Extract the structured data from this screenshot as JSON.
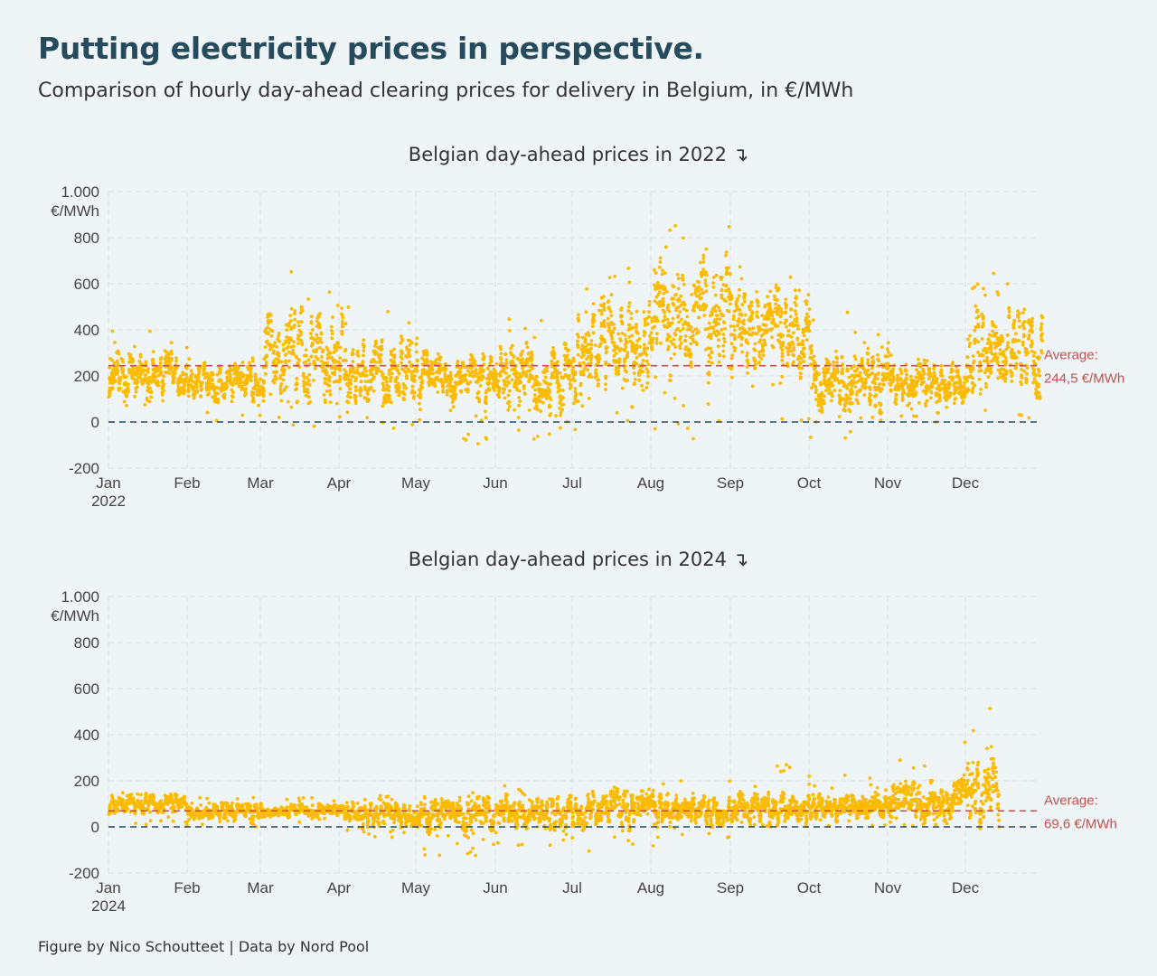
{
  "header": {
    "title": "Putting electricity prices in perspective.",
    "subtitle": "Comparison of hourly day-ahead clearing prices for delivery in Belgium, in €/MWh"
  },
  "footer": "Figure by Nico Schoutteet | Data by Nord Pool",
  "colors": {
    "points": "#fbbb00",
    "average_line": "#c0504d",
    "zero_line": "#264b5d",
    "grid": "#dcdfe2",
    "title": "#264b5d"
  },
  "chart_data": [
    {
      "type": "scatter",
      "title": "Belgian day-ahead prices in 2022 ↴",
      "year_label": "2022",
      "y_unit_label": "€/MWh",
      "ylim": [
        -200,
        1000
      ],
      "y_ticks": [
        -200,
        0,
        200,
        400,
        600,
        800,
        1000
      ],
      "y_tick_labels": [
        "-200",
        "0",
        "200",
        "400",
        "600",
        "800",
        "1.000"
      ],
      "months": [
        "Jan",
        "Feb",
        "Mar",
        "Apr",
        "May",
        "Jun",
        "Jul",
        "Aug",
        "Sep",
        "Oct",
        "Nov",
        "Dec"
      ],
      "reference_lines": [
        {
          "value": 244.5,
          "label_1": "Average:",
          "label_2": "244,5 €/MWh",
          "style": "dashed-red"
        },
        {
          "value": 0,
          "style": "dashed-dark"
        }
      ],
      "daily_ranges": {
        "description": "approximate daily low/mid/high hourly prices by month (€/MWh)",
        "monthly": [
          {
            "month": "Jan",
            "low": 60,
            "mid": 210,
            "high": 400
          },
          {
            "month": "Feb",
            "low": 0,
            "mid": 170,
            "high": 280
          },
          {
            "month": "Mar",
            "low": -40,
            "mid": 300,
            "high": 700
          },
          {
            "month": "Apr",
            "low": -30,
            "mid": 220,
            "high": 500
          },
          {
            "month": "May",
            "low": -100,
            "mid": 200,
            "high": 300
          },
          {
            "month": "Jun",
            "low": -80,
            "mid": 190,
            "high": 460
          },
          {
            "month": "Jul",
            "low": 0,
            "mid": 320,
            "high": 680
          },
          {
            "month": "Aug",
            "low": -90,
            "mid": 450,
            "high": 870
          },
          {
            "month": "Sep",
            "low": 0,
            "mid": 390,
            "high": 690
          },
          {
            "month": "Oct",
            "low": -70,
            "mid": 190,
            "high": 490
          },
          {
            "month": "Nov",
            "low": 0,
            "mid": 160,
            "high": 320
          },
          {
            "month": "Dec",
            "low": 0,
            "mid": 300,
            "high": 670
          }
        ]
      }
    },
    {
      "type": "scatter",
      "title": "Belgian day-ahead prices in 2024 ↴",
      "year_label": "2024",
      "y_unit_label": "€/MWh",
      "ylim": [
        -200,
        1000
      ],
      "y_ticks": [
        -200,
        0,
        200,
        400,
        600,
        800,
        1000
      ],
      "y_tick_labels": [
        "-200",
        "0",
        "200",
        "400",
        "600",
        "800",
        "1.000"
      ],
      "months": [
        "Jan",
        "Feb",
        "Mar",
        "Apr",
        "May",
        "Jun",
        "Jul",
        "Aug",
        "Sep",
        "Oct",
        "Nov",
        "Dec"
      ],
      "reference_lines": [
        {
          "value": 69.6,
          "label_1": "Average:",
          "label_2": "69,6 €/MWh",
          "style": "dashed-red"
        },
        {
          "value": 0,
          "style": "dashed-dark"
        }
      ],
      "daily_ranges": {
        "description": "approximate daily low/mid/high hourly prices by month (€/MWh)",
        "monthly": [
          {
            "month": "Jan",
            "low": 0,
            "mid": 100,
            "high": 150
          },
          {
            "month": "Feb",
            "low": 0,
            "mid": 70,
            "high": 130
          },
          {
            "month": "Mar",
            "low": 20,
            "mid": 70,
            "high": 130
          },
          {
            "month": "Apr",
            "low": -50,
            "mid": 55,
            "high": 160
          },
          {
            "month": "May",
            "low": -130,
            "mid": 50,
            "high": 160
          },
          {
            "month": "Jun",
            "low": -80,
            "mid": 65,
            "high": 180
          },
          {
            "month": "Jul",
            "low": -130,
            "mid": 70,
            "high": 180
          },
          {
            "month": "Aug",
            "low": -50,
            "mid": 75,
            "high": 200
          },
          {
            "month": "Sep",
            "low": 0,
            "mid": 80,
            "high": 270
          },
          {
            "month": "Oct",
            "low": 0,
            "mid": 85,
            "high": 230
          },
          {
            "month": "Nov",
            "low": 0,
            "mid": 120,
            "high": 370
          },
          {
            "month": "Dec",
            "low": 0,
            "mid": 130,
            "high": 570
          }
        ]
      }
    }
  ]
}
